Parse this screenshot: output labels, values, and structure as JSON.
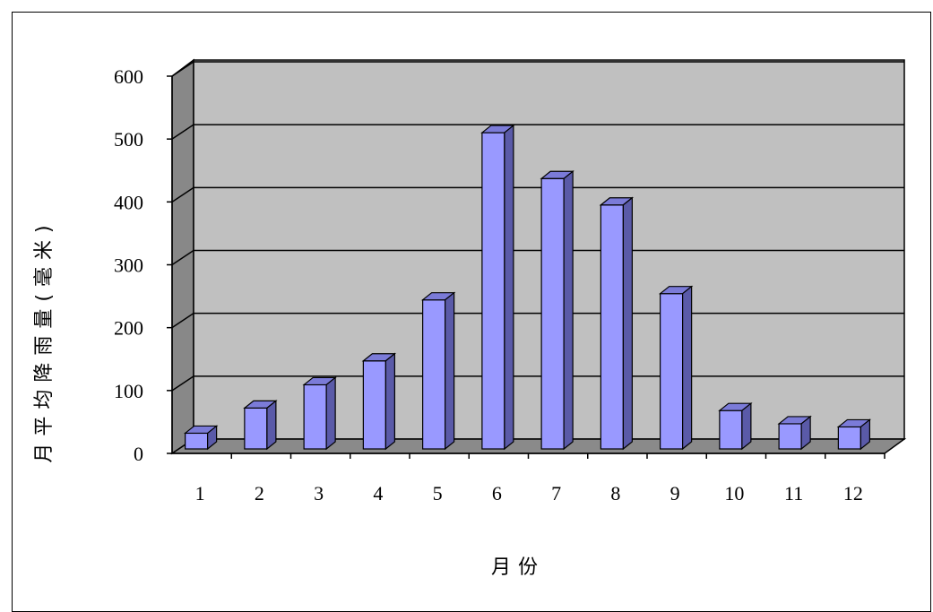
{
  "chart_data": {
    "type": "bar",
    "categories": [
      "1",
      "2",
      "3",
      "4",
      "5",
      "6",
      "7",
      "8",
      "9",
      "10",
      "11",
      "12"
    ],
    "values": [
      25,
      65,
      102,
      140,
      237,
      503,
      430,
      388,
      247,
      61,
      40,
      35
    ],
    "xlabel": "月份",
    "ylabel": "月平均降雨量(毫米)",
    "ylim": [
      0,
      600
    ],
    "yticks": [
      "0",
      "100",
      "200",
      "300",
      "400",
      "500",
      "600"
    ],
    "grid": true,
    "legend": "none",
    "colors": {
      "bar_front": "#9999ff",
      "bar_top": "#7b7bd8",
      "bar_side": "#5a5aa8",
      "wall": "#c0c0c0",
      "side_wall": "#888888",
      "floor": "#8a8a8a"
    }
  }
}
